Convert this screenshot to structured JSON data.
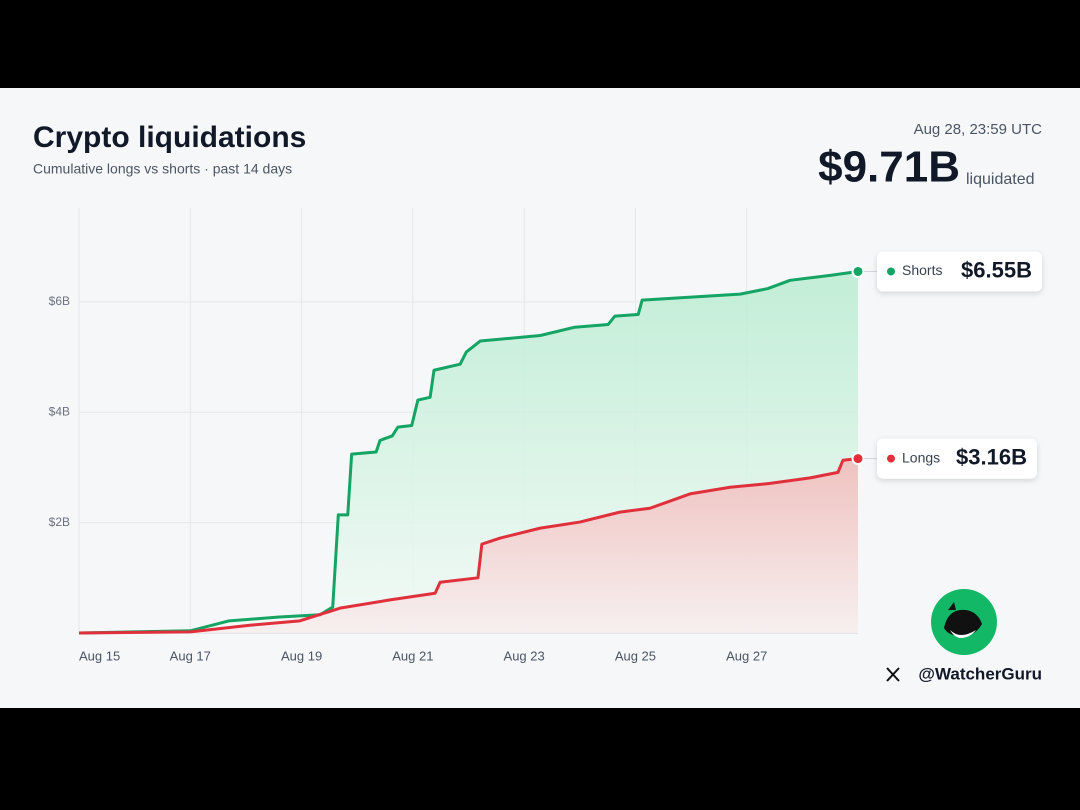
{
  "chart_data": {
    "type": "line",
    "title": "Crypto liquidations",
    "subtitle": "Cumulative longs vs shorts · past 14 days",
    "timestamp": "Aug 28, 23:59 UTC",
    "total_label": "$9.71B",
    "total_caption": "liquidated",
    "handle": "@WatcherGuru",
    "xlim": [
      0,
      14
    ],
    "xticks": [
      {
        "value": 0,
        "label": "Aug 15"
      },
      {
        "value": 2,
        "label": "Aug 17"
      },
      {
        "value": 4,
        "label": "Aug 19"
      },
      {
        "value": 6,
        "label": "Aug 21"
      },
      {
        "value": 8,
        "label": "Aug 23"
      },
      {
        "value": 10,
        "label": "Aug 25"
      },
      {
        "value": 12,
        "label": "Aug 27"
      }
    ],
    "ylim": [
      0,
      7.7
    ],
    "yticks": [
      {
        "value": 2,
        "label": "$2B"
      },
      {
        "value": 4,
        "label": "$4B"
      },
      {
        "value": 6,
        "label": "$6B"
      }
    ],
    "grid": true,
    "series": [
      {
        "name": "Shorts",
        "color": "#14a464",
        "end_label": "$6.55B",
        "x": [
          0,
          2,
          2.7,
          3.6,
          4.33,
          4.56,
          4.66,
          4.83,
          4.9,
          5.34,
          5.41,
          5.63,
          5.73,
          5.98,
          6.09,
          6.31,
          6.38,
          6.85,
          6.96,
          7.21,
          8.29,
          8.91,
          9.51,
          9.63,
          10.05,
          10.12,
          11.88,
          12.38,
          12.78,
          13.5,
          14
        ],
        "values": [
          0,
          0.04,
          0.22,
          0.29,
          0.33,
          0.47,
          2.14,
          2.14,
          3.24,
          3.28,
          3.49,
          3.57,
          3.73,
          3.76,
          4.22,
          4.27,
          4.76,
          4.87,
          5.09,
          5.29,
          5.39,
          5.54,
          5.59,
          5.74,
          5.77,
          6.03,
          6.14,
          6.24,
          6.39,
          6.48,
          6.55
        ]
      },
      {
        "name": "Longs",
        "color": "#e0303c",
        "end_label": "$3.16B",
        "x": [
          0,
          2,
          3.07,
          3.97,
          4.69,
          5.59,
          6.4,
          6.49,
          7.17,
          7.24,
          7.57,
          8.29,
          9.0,
          9.72,
          10.26,
          10.98,
          11.7,
          12.42,
          13.14,
          13.64,
          13.73,
          14
        ],
        "values": [
          0,
          0.02,
          0.14,
          0.22,
          0.45,
          0.6,
          0.72,
          0.92,
          1.0,
          1.61,
          1.72,
          1.9,
          2.01,
          2.19,
          2.26,
          2.52,
          2.64,
          2.71,
          2.81,
          2.91,
          3.13,
          3.16
        ]
      }
    ]
  }
}
